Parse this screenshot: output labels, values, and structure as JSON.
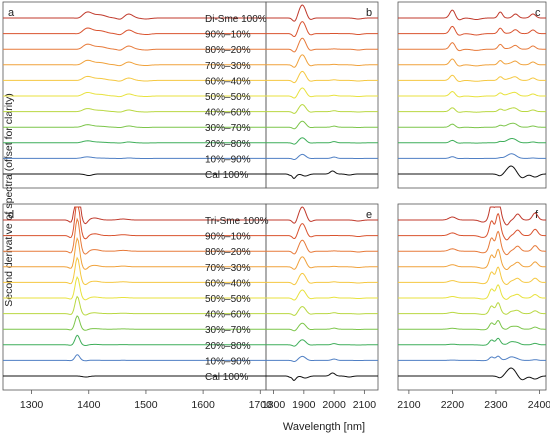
{
  "chart_data": {
    "type": "line",
    "ylabel": "Second derivative of spectra (offset for clarity)",
    "xlabel": "Wavelength [nm]",
    "x_ticks_left": [
      1300,
      1400,
      1500,
      1600,
      1700
    ],
    "x_ticks_mid": [
      1800,
      1900,
      2000,
      2100
    ],
    "x_ticks_right": [
      2100,
      2200,
      2300,
      2400
    ],
    "panel_labels": {
      "a": "a",
      "b": "b",
      "c": "c",
      "d": "d",
      "e": "e",
      "f": "f"
    },
    "top_series": [
      "Di-Sme 100%",
      "90%–10%",
      "80%–20%",
      "70%–30%",
      "60%–40%",
      "50%–50%",
      "40%–60%",
      "30%–70%",
      "20%–80%",
      "10%–90%",
      "Cal 100%"
    ],
    "bottom_series": [
      "Tri-Sme 100%",
      "90%–10%",
      "80%–20%",
      "70%–30%",
      "60%–40%",
      "50%–50%",
      "40%–60%",
      "30%–70%",
      "20%–80%",
      "10%–90%",
      "Cal 100%"
    ],
    "series_colors": [
      "#c0392b",
      "#d9532f",
      "#e77a3a",
      "#f0a23c",
      "#f5c842",
      "#e8e23e",
      "#b9d842",
      "#7cc54a",
      "#3fae5a",
      "#4f7fc4",
      "#111111"
    ],
    "grid": false
  }
}
